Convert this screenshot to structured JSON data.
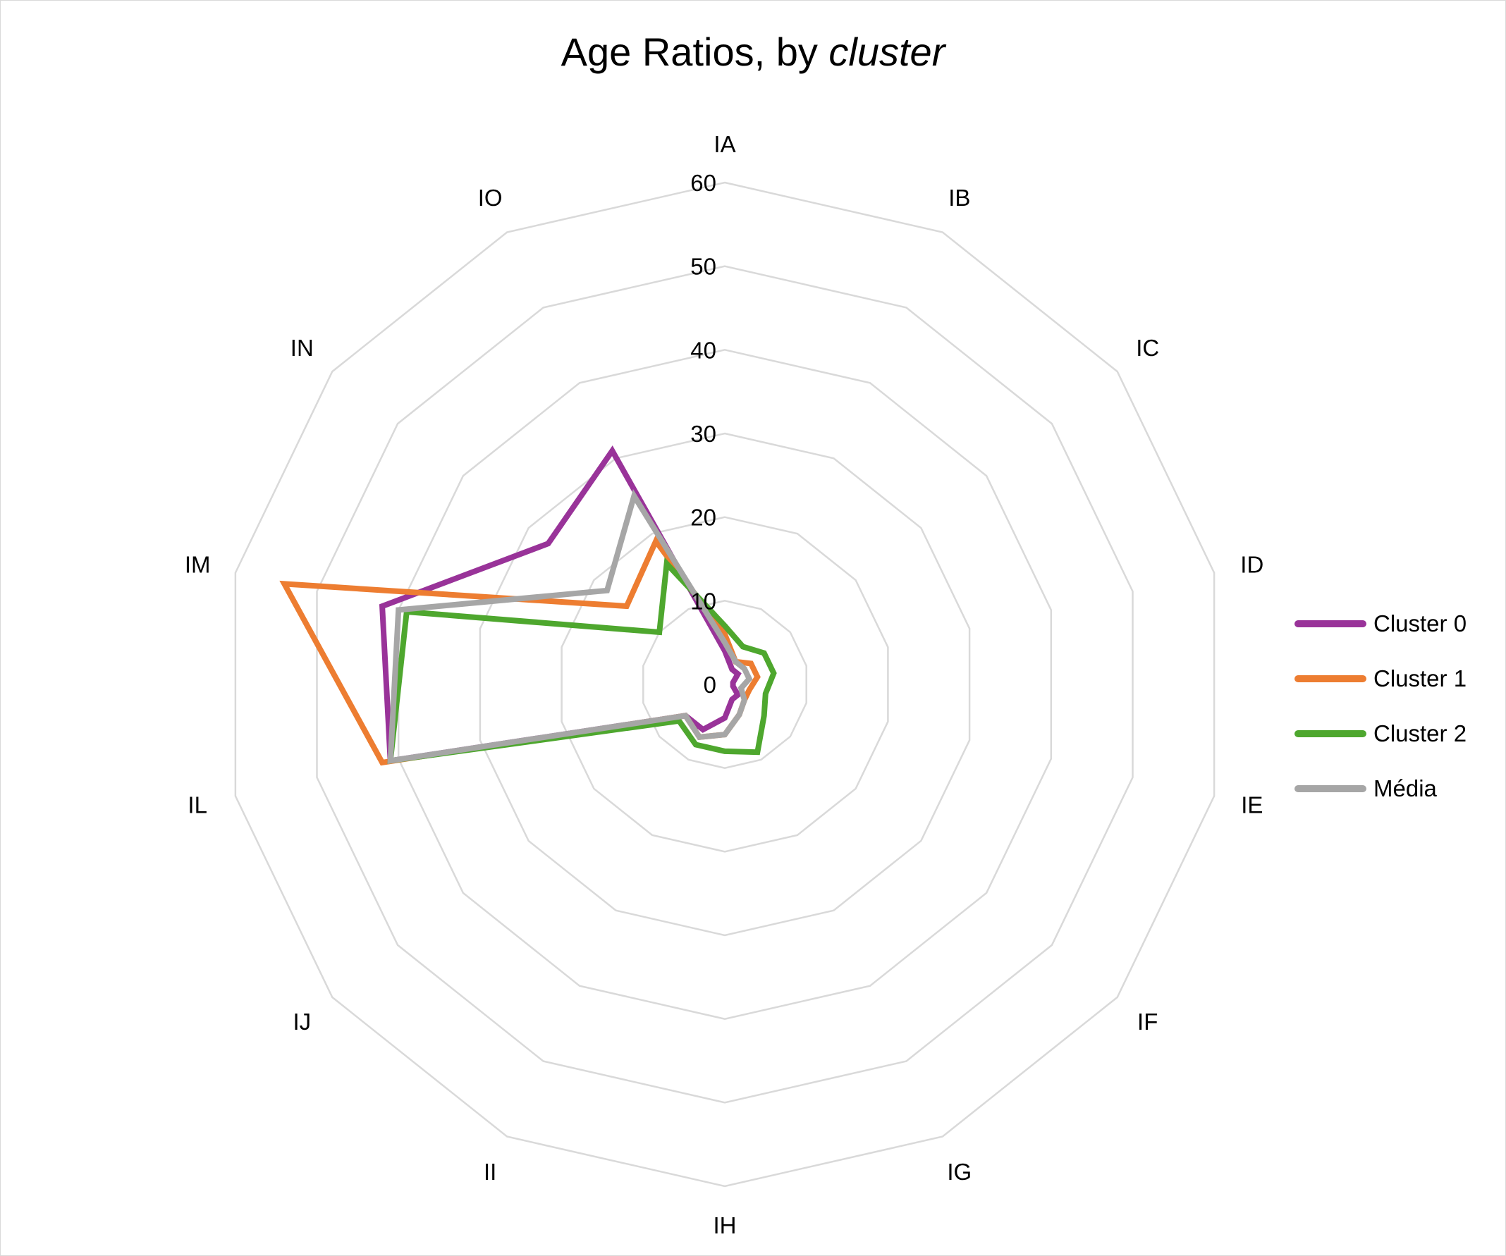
{
  "title_main": "Age Ratios, by ",
  "title_italic": "cluster",
  "chart_data": {
    "type": "radar",
    "title": "Age Ratios, by cluster",
    "categories": [
      "IA",
      "IB",
      "IC",
      "ID",
      "IE",
      "IF",
      "IG",
      "IH",
      "II",
      "IJ",
      "IL",
      "IM",
      "IN",
      "IO"
    ],
    "ticks": [
      "0",
      "10",
      "20",
      "30",
      "40",
      "50",
      "60"
    ],
    "rlim": [
      0,
      60
    ],
    "grid": true,
    "legend_position": "right",
    "series": [
      {
        "name": "Cluster 0",
        "color": "#993399",
        "values": [
          4,
          2,
          2,
          1,
          1,
          2,
          2,
          4,
          6,
          6,
          41,
          42,
          27,
          31
        ]
      },
      {
        "name": "Cluster 1",
        "color": "#ED7D31",
        "values": [
          6,
          3,
          4,
          4,
          3,
          3,
          4,
          6,
          7,
          6,
          42,
          54,
          15,
          19
        ]
      },
      {
        "name": "Cluster 2",
        "color": "#4EA72E",
        "values": [
          7,
          5,
          6,
          6,
          5,
          6,
          9,
          8,
          8,
          7,
          41,
          39,
          10,
          16
        ]
      },
      {
        "name": "Média",
        "color": "#A6A6A6",
        "values": [
          5,
          3,
          3,
          3,
          2,
          3,
          4,
          6,
          7,
          6,
          41,
          40,
          18,
          25
        ]
      }
    ]
  }
}
